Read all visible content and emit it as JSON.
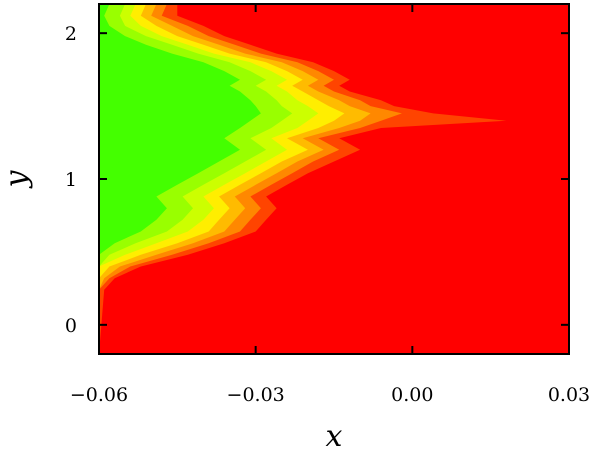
{
  "chart_data": {
    "type": "heatmap",
    "title": "",
    "xlabel": "x",
    "ylabel": "y",
    "xlim": [
      -0.06,
      0.03
    ],
    "ylim": [
      -0.2,
      2.2
    ],
    "x_ticks": [
      {
        "value": -0.06,
        "label": "−0.06"
      },
      {
        "value": -0.03,
        "label": "−0.03"
      },
      {
        "value": 0.0,
        "label": "0.00"
      },
      {
        "value": 0.03,
        "label": "0.03"
      }
    ],
    "y_ticks": [
      {
        "value": 0,
        "label": "0"
      },
      {
        "value": 1,
        "label": "1"
      },
      {
        "value": 2,
        "label": "2"
      }
    ],
    "grid": false,
    "legend": "none",
    "color_levels": [
      "#ff0000",
      "#ff4400",
      "#ff8800",
      "#ffbb00",
      "#ffee00",
      "#ccff00",
      "#99ff00",
      "#44ff00"
    ],
    "level_boundaries": [
      {
        "x": [
          -0.045,
          -0.045,
          -0.04,
          -0.036,
          -0.031,
          -0.026,
          -0.019,
          -0.015,
          -0.012,
          -0.014,
          -0.012,
          -0.006,
          -0.0035,
          0.004,
          0.018,
          -0.006,
          -0.014,
          -0.01,
          -0.015,
          -0.02,
          -0.024,
          -0.028,
          -0.026,
          -0.028,
          -0.03,
          -0.036,
          -0.043,
          -0.052,
          -0.057,
          -0.059,
          -0.06
        ]
      },
      {
        "x": [
          -0.047,
          -0.048,
          -0.043,
          -0.039,
          -0.034,
          -0.029,
          -0.022,
          -0.018,
          -0.015,
          -0.017,
          -0.015,
          -0.01,
          -0.008,
          -0.002,
          -0.006,
          -0.01,
          -0.018,
          -0.014,
          -0.019,
          -0.023,
          -0.027,
          -0.031,
          -0.029,
          -0.031,
          -0.033,
          -0.039,
          -0.046,
          -0.054,
          -0.058,
          -0.06,
          -0.06
        ]
      },
      {
        "x": [
          -0.049,
          -0.05,
          -0.046,
          -0.042,
          -0.037,
          -0.032,
          -0.025,
          -0.021,
          -0.018,
          -0.02,
          -0.018,
          -0.014,
          -0.012,
          -0.008,
          -0.01,
          -0.014,
          -0.021,
          -0.017,
          -0.022,
          -0.026,
          -0.03,
          -0.034,
          -0.032,
          -0.034,
          -0.036,
          -0.042,
          -0.049,
          -0.056,
          -0.059,
          -0.06,
          -0.06
        ]
      },
      {
        "x": [
          -0.051,
          -0.052,
          -0.049,
          -0.045,
          -0.04,
          -0.035,
          -0.028,
          -0.024,
          -0.021,
          -0.023,
          -0.021,
          -0.018,
          -0.016,
          -0.013,
          -0.015,
          -0.018,
          -0.024,
          -0.02,
          -0.025,
          -0.029,
          -0.033,
          -0.037,
          -0.035,
          -0.037,
          -0.039,
          -0.045,
          -0.052,
          -0.058,
          -0.06,
          -0.06,
          -0.06
        ]
      },
      {
        "x": [
          -0.053,
          -0.054,
          -0.052,
          -0.048,
          -0.043,
          -0.038,
          -0.031,
          -0.027,
          -0.024,
          -0.026,
          -0.024,
          -0.022,
          -0.02,
          -0.018,
          -0.02,
          -0.022,
          -0.027,
          -0.024,
          -0.028,
          -0.032,
          -0.036,
          -0.04,
          -0.038,
          -0.04,
          -0.043,
          -0.049,
          -0.055,
          -0.06,
          -0.06,
          -0.06,
          -0.06
        ]
      },
      {
        "x": [
          -0.055,
          -0.056,
          -0.055,
          -0.051,
          -0.046,
          -0.041,
          -0.035,
          -0.031,
          -0.028,
          -0.03,
          -0.028,
          -0.026,
          -0.025,
          -0.023,
          -0.025,
          -0.027,
          -0.031,
          -0.028,
          -0.032,
          -0.036,
          -0.04,
          -0.044,
          -0.042,
          -0.044,
          -0.047,
          -0.053,
          -0.058,
          -0.06,
          -0.06,
          -0.06,
          -0.06
        ]
      },
      {
        "x": [
          -0.058,
          -0.059,
          -0.058,
          -0.055,
          -0.051,
          -0.046,
          -0.04,
          -0.036,
          -0.033,
          -0.035,
          -0.033,
          -0.031,
          -0.03,
          -0.029,
          -0.031,
          -0.033,
          -0.036,
          -0.033,
          -0.037,
          -0.041,
          -0.045,
          -0.049,
          -0.047,
          -0.049,
          -0.052,
          -0.057,
          -0.06,
          -0.06,
          -0.06,
          -0.06,
          -0.06
        ]
      }
    ],
    "level_boundary_y": [
      2.2,
      2.12,
      2.05,
      1.98,
      1.92,
      1.86,
      1.8,
      1.74,
      1.68,
      1.64,
      1.6,
      1.54,
      1.5,
      1.45,
      1.4,
      1.35,
      1.28,
      1.2,
      1.12,
      1.04,
      0.96,
      0.88,
      0.8,
      0.72,
      0.64,
      0.56,
      0.48,
      0.4,
      0.32,
      0.24,
      -0.2
    ],
    "green_core": {
      "x": [
        -0.06,
        -0.053,
        -0.052,
        -0.055,
        -0.06
      ],
      "y": [
        1.75,
        1.55,
        1.35,
        1.15,
        1.0
      ]
    }
  }
}
